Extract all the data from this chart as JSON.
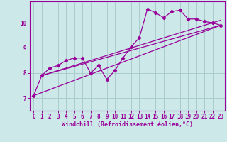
{
  "xlabel": "Windchill (Refroidissement éolien,°C)",
  "bg_color": "#cce8e8",
  "line_color": "#990099",
  "grid_color": "#aacccc",
  "xlim": [
    -0.5,
    23.5
  ],
  "ylim": [
    6.5,
    10.85
  ],
  "yticks": [
    7,
    8,
    9,
    10
  ],
  "xticks": [
    0,
    1,
    2,
    3,
    4,
    5,
    6,
    7,
    8,
    9,
    10,
    11,
    12,
    13,
    14,
    15,
    16,
    17,
    18,
    19,
    20,
    21,
    22,
    23
  ],
  "series1_x": [
    0,
    1,
    2,
    3,
    4,
    5,
    6,
    7,
    8,
    9,
    10,
    11,
    12,
    13,
    14,
    15,
    16,
    17,
    18,
    19,
    20,
    21,
    22,
    23
  ],
  "series1_y": [
    7.1,
    7.9,
    8.2,
    8.3,
    8.5,
    8.6,
    8.6,
    8.0,
    8.3,
    7.75,
    8.1,
    8.6,
    9.05,
    9.4,
    10.55,
    10.4,
    10.2,
    10.45,
    10.5,
    10.15,
    10.15,
    10.05,
    10.0,
    9.9
  ],
  "series2_x": [
    1,
    23
  ],
  "series2_y": [
    7.9,
    10.1
  ],
  "series3_x": [
    1,
    23
  ],
  "series3_y": [
    7.9,
    9.9
  ],
  "series4_x": [
    0,
    23
  ],
  "series4_y": [
    7.1,
    9.9
  ],
  "tick_fontsize": 5.5,
  "xlabel_fontsize": 6.0
}
